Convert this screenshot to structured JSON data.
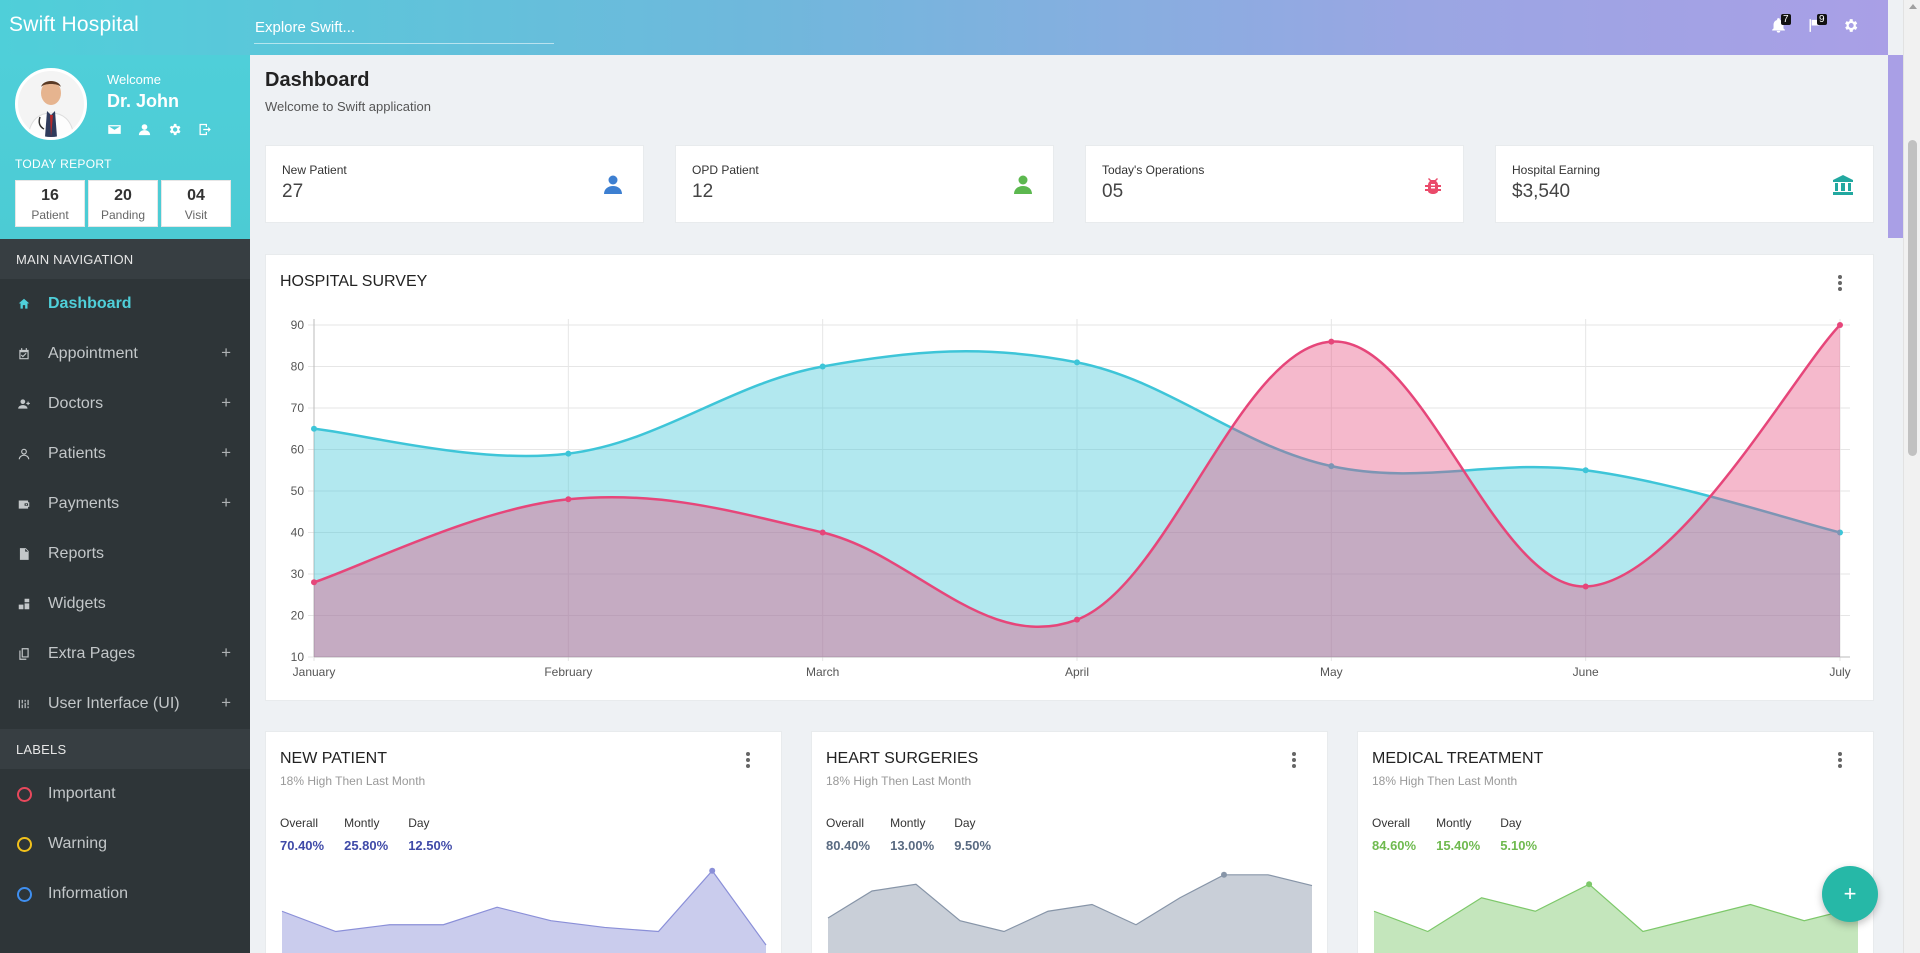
{
  "header": {
    "brand": "Swift Hospital",
    "search_placeholder": "Explore Swift...",
    "notifications_count": "7",
    "flags_count": "9"
  },
  "profile": {
    "welcome": "Welcome",
    "name": "Dr. John",
    "today_report": "TODAY REPORT",
    "stats": [
      {
        "value": "16",
        "label": "Patient"
      },
      {
        "value": "20",
        "label": "Panding"
      },
      {
        "value": "04",
        "label": "Visit"
      }
    ]
  },
  "sidebar": {
    "main_nav_title": "MAIN NAVIGATION",
    "items": [
      {
        "label": "Dashboard",
        "icon": "home-icon",
        "expandable": false
      },
      {
        "label": "Appointment",
        "icon": "calendar-check-icon",
        "expandable": true
      },
      {
        "label": "Doctors",
        "icon": "user-plus-icon",
        "expandable": true
      },
      {
        "label": "Patients",
        "icon": "user-icon",
        "expandable": true
      },
      {
        "label": "Payments",
        "icon": "wallet-icon",
        "expandable": true
      },
      {
        "label": "Reports",
        "icon": "file-icon",
        "expandable": false
      },
      {
        "label": "Widgets",
        "icon": "widgets-icon",
        "expandable": false
      },
      {
        "label": "Extra Pages",
        "icon": "copy-icon",
        "expandable": true
      },
      {
        "label": "User Interface (UI)",
        "icon": "ui-icon",
        "expandable": true
      }
    ],
    "labels_title": "LABELS",
    "labels": [
      {
        "label": "Important",
        "color": "#e8485c"
      },
      {
        "label": "Warning",
        "color": "#f2c11b"
      },
      {
        "label": "Information",
        "color": "#3f8ff0"
      }
    ]
  },
  "page": {
    "title": "Dashboard",
    "subtitle": "Welcome to Swift application"
  },
  "stat_cards": [
    {
      "label": "New Patient",
      "value": "27",
      "icon": "user-icon",
      "color": "#3d7fd1"
    },
    {
      "label": "OPD Patient",
      "value": "12",
      "icon": "user-icon",
      "color": "#5cb84f"
    },
    {
      "label": "Today's Operations",
      "value": "05",
      "icon": "bug-icon",
      "color": "#ea4a6a"
    },
    {
      "label": "Hospital Earning",
      "value": "$3,540",
      "icon": "bank-icon",
      "color": "#22a8a0"
    }
  ],
  "survey": {
    "title": "HOSPITAL SURVEY"
  },
  "chart_data": [
    {
      "type": "area",
      "title": "HOSPITAL SURVEY",
      "categories": [
        "January",
        "February",
        "March",
        "April",
        "May",
        "June",
        "July"
      ],
      "ylim": [
        10,
        90
      ],
      "yticks": [
        10,
        20,
        30,
        40,
        50,
        60,
        70,
        80,
        90
      ],
      "grid": true,
      "series": [
        {
          "color": "#3ec5d8",
          "values": [
            65,
            59,
            80,
            81,
            56,
            55,
            40
          ]
        },
        {
          "color": "#e6467a",
          "values": [
            28,
            48,
            40,
            19,
            86,
            27,
            90
          ]
        }
      ]
    },
    {
      "type": "area",
      "title": "NEW PATIENT",
      "series": [
        {
          "color": "#8a8fd8",
          "values": [
            45,
            30,
            35,
            35,
            48,
            38,
            33,
            30,
            75,
            20
          ]
        }
      ]
    },
    {
      "type": "area",
      "title": "HEART SURGERIES",
      "series": [
        {
          "color": "#8795a8",
          "values": [
            40,
            60,
            65,
            38,
            30,
            45,
            50,
            35,
            55,
            72,
            72,
            64
          ]
        }
      ]
    },
    {
      "type": "area",
      "title": "MEDICAL TREATMENT",
      "series": [
        {
          "color": "#7dc86a",
          "values": [
            45,
            30,
            55,
            45,
            65,
            30,
            40,
            50,
            38,
            48
          ]
        }
      ]
    }
  ],
  "mini_cards": [
    {
      "title": "NEW PATIENT",
      "subtitle": "18% High Then Last Month",
      "color": "#3f4aa8",
      "stats": [
        {
          "k": "Overall",
          "v": "70.40%"
        },
        {
          "k": "Montly",
          "v": "25.80%"
        },
        {
          "k": "Day",
          "v": "12.50%"
        }
      ]
    },
    {
      "title": "HEART SURGERIES",
      "subtitle": "18% High Then Last Month",
      "color": "#5a6b82",
      "stats": [
        {
          "k": "Overall",
          "v": "80.40%"
        },
        {
          "k": "Montly",
          "v": "13.00%"
        },
        {
          "k": "Day",
          "v": "9.50%"
        }
      ]
    },
    {
      "title": "MEDICAL TREATMENT",
      "subtitle": "18% High Then Last Month",
      "color": "#6fba4f",
      "stats": [
        {
          "k": "Overall",
          "v": "84.60%"
        },
        {
          "k": "Montly",
          "v": "15.40%"
        },
        {
          "k": "Day",
          "v": "5.10%"
        }
      ]
    }
  ],
  "fab_label": "+"
}
